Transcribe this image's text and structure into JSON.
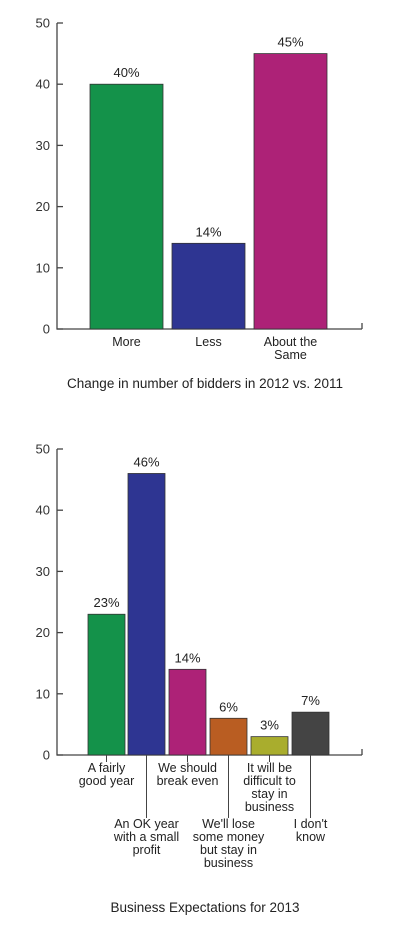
{
  "chart_data": [
    {
      "type": "bar",
      "title": "",
      "caption": "Change in number of bidders in 2012 vs. 2011",
      "categories": [
        [
          "More"
        ],
        [
          "Less"
        ],
        [
          "About the",
          "Same"
        ]
      ],
      "values": [
        40,
        14,
        45
      ],
      "value_labels": [
        "40%",
        "14%",
        "45%"
      ],
      "colors": [
        "#14924a",
        "#2e3592",
        "#ad2277"
      ],
      "ylim": [
        0,
        50
      ],
      "yticks": [
        0,
        10,
        20,
        30,
        40,
        50
      ],
      "grid": false
    },
    {
      "type": "bar",
      "title": "",
      "caption": "Business Expectations for 2013",
      "categories": [
        [
          "A fairly",
          "good year"
        ],
        [
          "An OK year",
          "with a small",
          "profit"
        ],
        [
          "We should",
          "break even"
        ],
        [
          "We'll lose",
          "some money",
          "but stay in",
          "business"
        ],
        [
          "It will be",
          "difficult to",
          "stay in",
          "business"
        ],
        [
          "I don't",
          "know"
        ]
      ],
      "values": [
        23,
        46,
        14,
        6,
        3,
        7
      ],
      "value_labels": [
        "23%",
        "46%",
        "14%",
        "6%",
        "3%",
        "7%"
      ],
      "colors": [
        "#14924a",
        "#2e3592",
        "#ad2277",
        "#b95d22",
        "#a9ad2d",
        "#444444"
      ],
      "ylim": [
        0,
        50
      ],
      "yticks": [
        0,
        10,
        20,
        30,
        40,
        50
      ],
      "grid": false
    }
  ]
}
